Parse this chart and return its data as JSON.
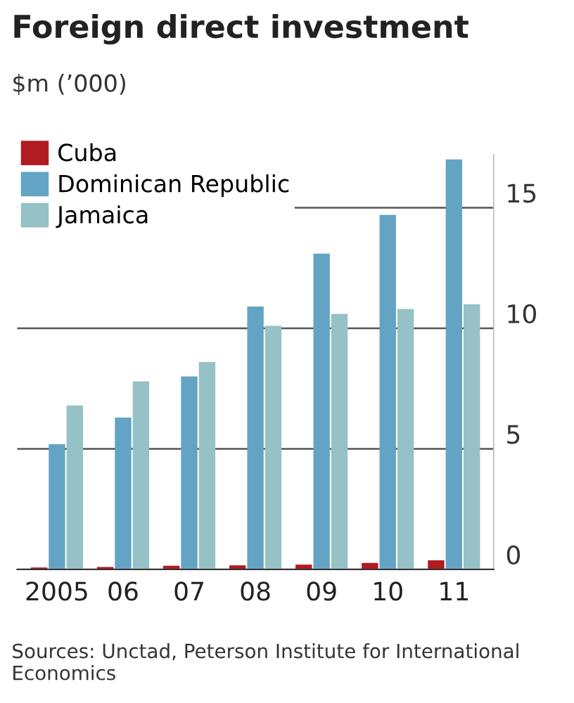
{
  "chart_data": {
    "type": "bar",
    "title": "Foreign direct investment",
    "subtitle": "$m (’000)",
    "categories": [
      "2005",
      "06",
      "07",
      "08",
      "09",
      "10",
      "11"
    ],
    "series": [
      {
        "name": "Cuba",
        "color": "#b11b22",
        "values": [
          0.08,
          0.1,
          0.15,
          0.17,
          0.2,
          0.27,
          0.38
        ]
      },
      {
        "name": "Dominican Republic",
        "color": "#63a4c4",
        "values": [
          5.2,
          6.3,
          8.0,
          10.9,
          13.1,
          14.7,
          17.0
        ]
      },
      {
        "name": "Jamaica",
        "color": "#96c1c6",
        "values": [
          6.8,
          7.8,
          8.6,
          10.1,
          10.6,
          10.8,
          11.0
        ]
      }
    ],
    "ylim": [
      0,
      17.2
    ],
    "yticks": [
      0,
      5,
      10,
      15
    ],
    "grid": "y",
    "legend": "top left",
    "annotations": [
      "Sources: Unctad, Peterson Institute for International Economics"
    ]
  }
}
